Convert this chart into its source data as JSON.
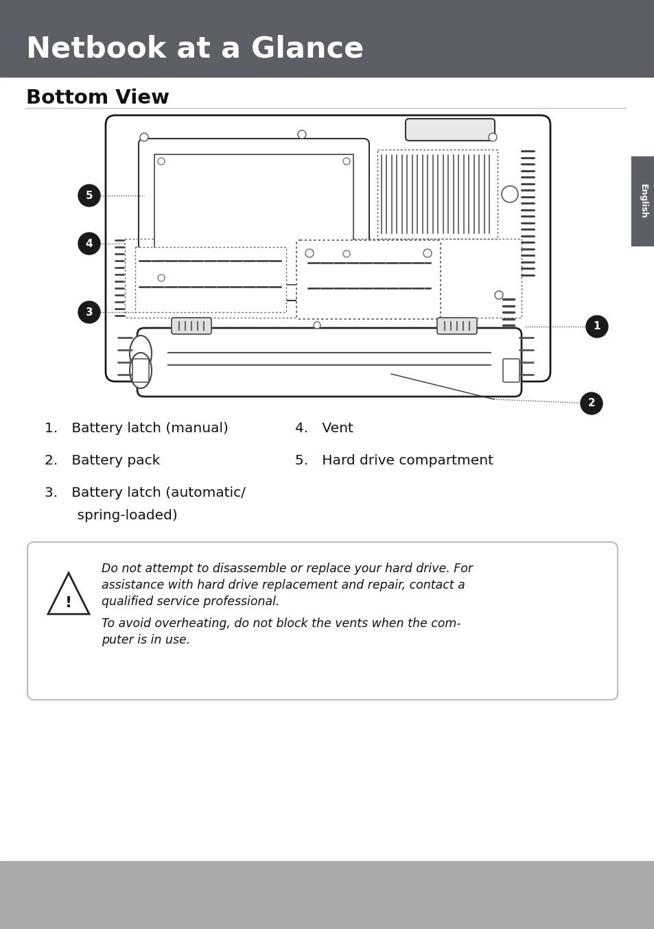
{
  "header_bg": "#5c5f66",
  "header_text": "Netbook at a Glance",
  "header_text_color": "#ffffff",
  "footer_bg": "#aaaaaa",
  "page_bg": "#ffffff",
  "section_title": "Bottom View",
  "warning_line1": "Do not attempt to disassemble or replace your hard drive. For",
  "warning_line2": "assistance with hard drive replacement and repair, contact a",
  "warning_line3": "qualified service professional.",
  "warning_line4": "To avoid overheating, do not block the vents when the com-",
  "warning_line5": "puter is in use.",
  "sidebar_text": "English",
  "sidebar_bg": "#5c5f66",
  "sidebar_text_color": "#ffffff",
  "list1": "1. Battery latch (manual)",
  "list2": "2. Battery pack",
  "list3a": "3. Battery latch (automatic/",
  "list3b": "    spring-loaded)",
  "list4": "4. Vent",
  "list5": "5. Hard drive compartment"
}
